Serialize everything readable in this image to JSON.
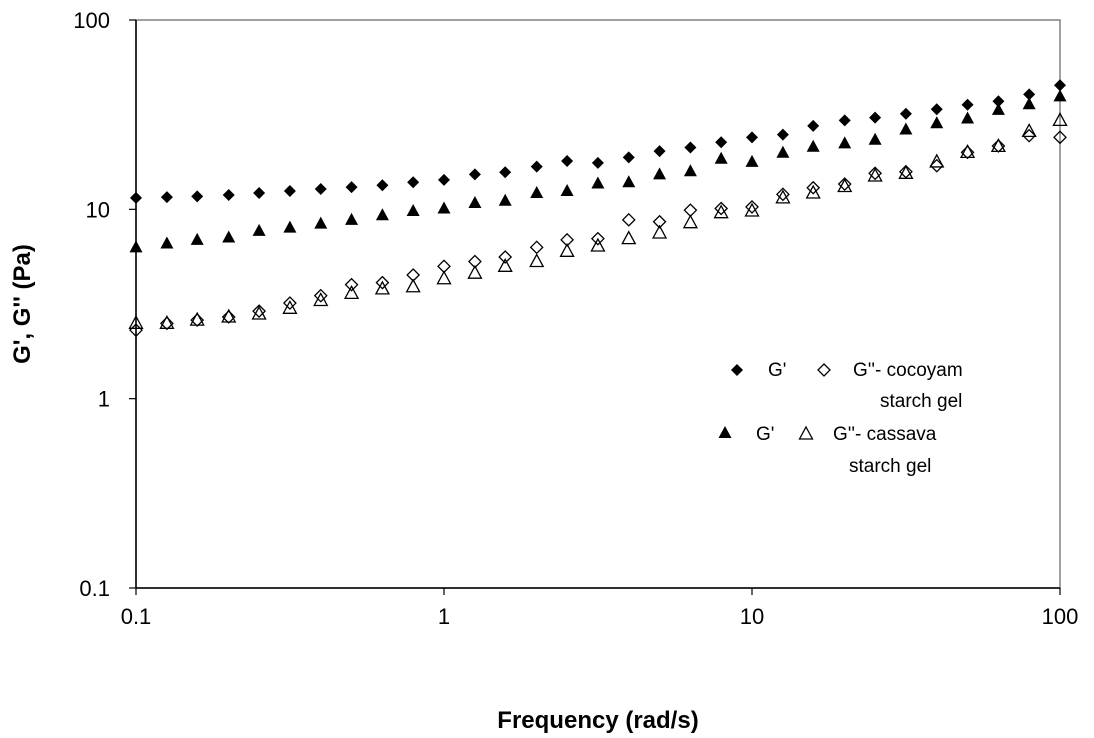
{
  "chart_data": {
    "type": "scatter",
    "x_scale": "log",
    "y_scale": "log",
    "xlim": [
      0.1,
      100
    ],
    "ylim": [
      0.1,
      100
    ],
    "xlabel": "Frequency (rad/s)",
    "ylabel": "G', G'' (Pa)",
    "x_ticks": [
      "0.1",
      "1",
      "10",
      "100"
    ],
    "y_ticks": [
      "0.1",
      "1",
      "10",
      "100"
    ],
    "grid": false,
    "legend_position": "right",
    "legend": {
      "row1": {
        "label1": "G'",
        "label2": "G''- cocoyam",
        "label3": "starch gel"
      },
      "row2": {
        "label1": "G'",
        "label2": "G''- cassava",
        "label3": "starch gel"
      }
    },
    "x": [
      0.1,
      0.126,
      0.158,
      0.2,
      0.251,
      0.316,
      0.398,
      0.501,
      0.631,
      0.794,
      1.0,
      1.26,
      1.58,
      2.0,
      2.51,
      3.16,
      3.98,
      5.01,
      6.31,
      7.94,
      10.0,
      12.6,
      15.8,
      20.0,
      25.1,
      31.6,
      39.8,
      50.1,
      63.1,
      79.4,
      100.0
    ],
    "series": [
      {
        "name": "G' cocoyam starch gel",
        "marker": "diamond-filled",
        "values": [
          11.5,
          11.6,
          11.7,
          11.9,
          12.2,
          12.5,
          12.8,
          13.1,
          13.4,
          13.9,
          14.3,
          15.3,
          15.7,
          16.8,
          18.0,
          17.6,
          18.8,
          20.3,
          21.2,
          22.6,
          24.0,
          24.8,
          27.6,
          29.5,
          30.5,
          32.0,
          33.8,
          35.7,
          37.2,
          40.5,
          45.2
        ]
      },
      {
        "name": "G'' cocoyam starch gel",
        "marker": "diamond-open",
        "values": [
          2.3,
          2.5,
          2.6,
          2.7,
          2.9,
          3.2,
          3.5,
          4.0,
          4.1,
          4.5,
          5.0,
          5.3,
          5.6,
          6.3,
          6.9,
          7.0,
          8.8,
          8.6,
          9.9,
          10.1,
          10.3,
          12.0,
          13.0,
          13.6,
          15.5,
          15.8,
          17.0,
          20.0,
          21.6,
          24.5,
          24.0
        ]
      },
      {
        "name": "G' cassava starch gel",
        "marker": "triangle-filled",
        "values": [
          6.3,
          6.6,
          6.9,
          7.1,
          7.7,
          8.0,
          8.4,
          8.8,
          9.3,
          9.8,
          10.1,
          10.8,
          11.1,
          12.2,
          12.5,
          13.7,
          13.9,
          15.3,
          15.9,
          18.5,
          17.8,
          19.9,
          21.4,
          22.3,
          23.3,
          26.4,
          28.5,
          30.2,
          33.5,
          35.9,
          39.5
        ]
      },
      {
        "name": "G'' cassava starch gel",
        "marker": "triangle-open",
        "values": [
          2.5,
          2.5,
          2.6,
          2.7,
          2.8,
          3.0,
          3.3,
          3.6,
          3.8,
          3.9,
          4.3,
          4.6,
          5.0,
          5.3,
          6.0,
          6.4,
          7.0,
          7.5,
          8.5,
          9.6,
          9.8,
          11.5,
          12.2,
          13.2,
          15.0,
          15.5,
          17.8,
          20.0,
          21.5,
          25.8,
          29.5
        ]
      }
    ]
  }
}
